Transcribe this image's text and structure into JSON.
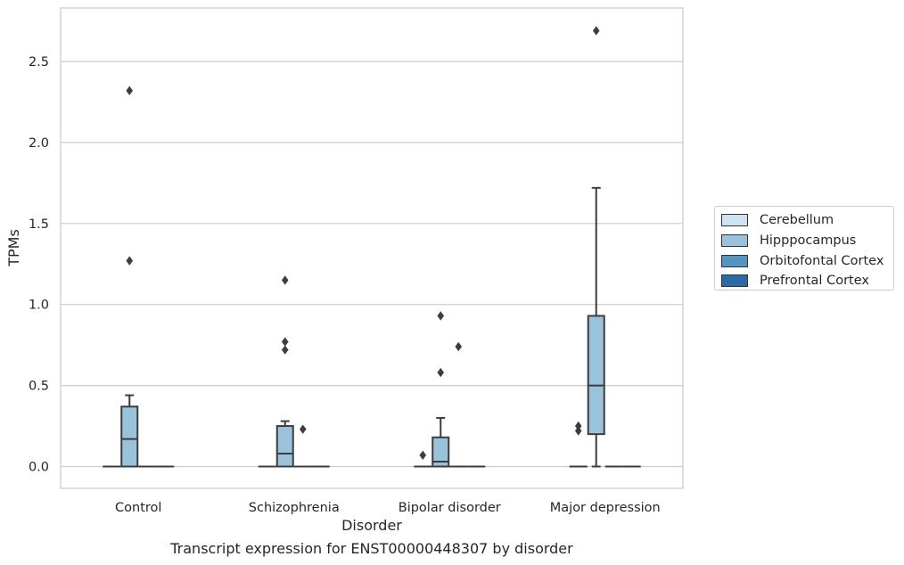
{
  "chart_data": {
    "type": "box",
    "xlabel": "Disorder",
    "ylabel": "TPMs",
    "caption": "Transcript expression for ENST00000448307 by disorder",
    "categories": [
      "Control",
      "Schizophrenia",
      "Bipolar disorder",
      "Major depression"
    ],
    "ylim": [
      -0.13,
      2.85
    ],
    "yticks": [
      "0.0",
      "0.5",
      "1.0",
      "1.5",
      "2.0",
      "2.5"
    ],
    "grid": true,
    "legend_position": "right",
    "series": [
      {
        "name": "Cerebellum",
        "color": "#d0e1f2",
        "boxes": [
          {
            "q1": 0,
            "median": 0,
            "q3": 0,
            "whislo": 0,
            "whishi": 0,
            "fliers": []
          },
          {
            "q1": 0,
            "median": 0,
            "q3": 0,
            "whislo": 0,
            "whishi": 0,
            "fliers": []
          },
          {
            "q1": 0,
            "median": 0,
            "q3": 0,
            "whislo": 0,
            "whishi": 0,
            "fliers": [
              0.07
            ]
          },
          {
            "q1": 0,
            "median": 0,
            "q3": 0,
            "whislo": 0,
            "whishi": 0,
            "fliers": [
              0.25,
              0.22
            ]
          }
        ]
      },
      {
        "name": "Hipppocampus",
        "color": "#9ac2da",
        "boxes": [
          {
            "q1": 0,
            "median": 0.17,
            "q3": 0.37,
            "whislo": 0,
            "whishi": 0.44,
            "fliers": [
              1.27,
              2.32
            ]
          },
          {
            "q1": 0,
            "median": 0.08,
            "q3": 0.25,
            "whislo": 0,
            "whishi": 0.28,
            "fliers": [
              0.72,
              0.77,
              1.15
            ]
          },
          {
            "q1": 0,
            "median": 0.03,
            "q3": 0.18,
            "whislo": 0,
            "whishi": 0.3,
            "fliers": [
              0.58,
              0.93
            ]
          },
          {
            "q1": 0.2,
            "median": 0.5,
            "q3": 0.93,
            "whislo": 0,
            "whishi": 1.72,
            "fliers": [
              2.69
            ]
          }
        ]
      },
      {
        "name": "Orbitofontal Cortex",
        "color": "#5694c4",
        "boxes": [
          {
            "q1": 0,
            "median": 0,
            "q3": 0,
            "whislo": 0,
            "whishi": 0,
            "fliers": []
          },
          {
            "q1": 0,
            "median": 0,
            "q3": 0,
            "whislo": 0,
            "whishi": 0,
            "fliers": [
              0.23
            ]
          },
          {
            "q1": 0,
            "median": 0,
            "q3": 0,
            "whislo": 0,
            "whishi": 0,
            "fliers": [
              0.74
            ]
          },
          {
            "q1": 0,
            "median": 0,
            "q3": 0,
            "whislo": 0,
            "whishi": 0,
            "fliers": []
          }
        ]
      },
      {
        "name": "Prefrontal Cortex",
        "color": "#2c69a8",
        "boxes": [
          {
            "q1": 0,
            "median": 0,
            "q3": 0,
            "whislo": 0,
            "whishi": 0,
            "fliers": []
          },
          {
            "q1": 0,
            "median": 0,
            "q3": 0,
            "whislo": 0,
            "whishi": 0,
            "fliers": []
          },
          {
            "q1": 0,
            "median": 0,
            "q3": 0,
            "whislo": 0,
            "whishi": 0,
            "fliers": []
          },
          {
            "q1": 0,
            "median": 0,
            "q3": 0,
            "whislo": 0,
            "whishi": 0,
            "fliers": []
          }
        ]
      }
    ]
  }
}
